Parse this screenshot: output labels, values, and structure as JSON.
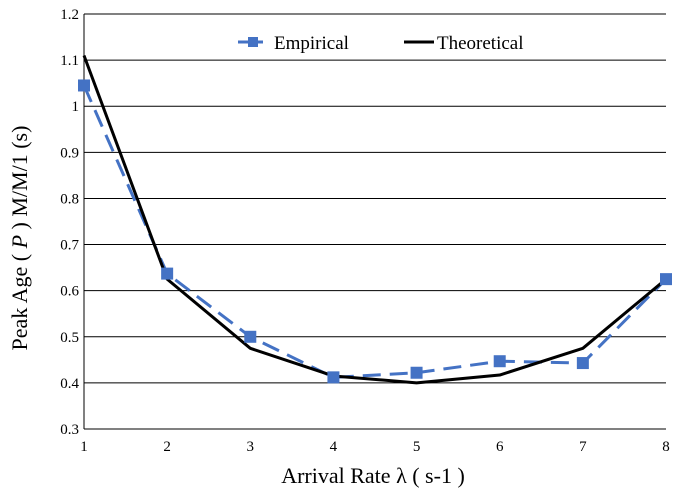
{
  "chart_data": {
    "type": "line",
    "x": [
      1,
      2,
      3,
      4,
      5,
      6,
      7,
      8
    ],
    "series": [
      {
        "name": "Empirical",
        "color": "#4472C4",
        "style": "dashed line with square markers",
        "values": [
          1.045,
          0.637,
          0.5,
          0.412,
          0.422,
          0.447,
          0.443,
          0.625
        ]
      },
      {
        "name": "Theoretical",
        "color": "#000000",
        "style": "solid line",
        "values": [
          1.11,
          0.625,
          0.475,
          0.415,
          0.4,
          0.417,
          0.475,
          0.625
        ]
      }
    ],
    "xlabel": "Arrival Rate λ ( s-1 )",
    "ylabel_prefix": "Peak Age ( ",
    "ylabel_italic": "P",
    "ylabel_suffix": " ) M/M/1 (s)",
    "xlim": [
      1,
      8
    ],
    "ylim": [
      0.3,
      1.2
    ],
    "xticks": [
      "1",
      "2",
      "3",
      "4",
      "5",
      "6",
      "7",
      "8"
    ],
    "yticks": [
      "0.3",
      "0.4",
      "0.5",
      "0.6",
      "0.7",
      "0.8",
      "0.9",
      "1",
      "1.1",
      "1.2"
    ],
    "grid": "horizontal",
    "legend_position": "top-center"
  }
}
